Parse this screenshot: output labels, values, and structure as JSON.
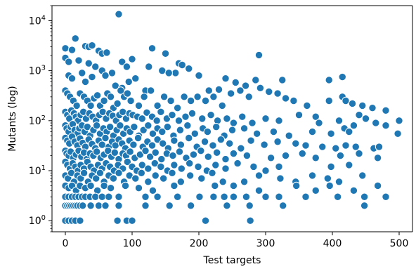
{
  "chart_data": {
    "type": "scatter",
    "title": "",
    "xlabel": "Test targets",
    "ylabel": "Mutants (log)",
    "xlim": [
      -20,
      520
    ],
    "ylim": [
      0.6,
      20000
    ],
    "yscale": "log",
    "grid": false,
    "colors": {
      "point_fill": "#1f77b4",
      "point_edge": "#ffffff",
      "axes": "#000000"
    },
    "x_ticks": [
      {
        "value": 0,
        "label": "0"
      },
      {
        "value": 100,
        "label": "100"
      },
      {
        "value": 200,
        "label": "200"
      },
      {
        "value": 300,
        "label": "300"
      },
      {
        "value": 400,
        "label": "400"
      },
      {
        "value": 500,
        "label": "500"
      }
    ],
    "y_ticks": [
      {
        "value": 1,
        "base": "10",
        "exp": "0"
      },
      {
        "value": 10,
        "base": "10",
        "exp": "1"
      },
      {
        "value": 100,
        "base": "10",
        "exp": "2"
      },
      {
        "value": 1000,
        "base": "10",
        "exp": "3"
      },
      {
        "value": 10000,
        "base": "10",
        "exp": "4"
      }
    ],
    "points": [
      [
        80,
        13500
      ],
      [
        15,
        4400
      ],
      [
        0,
        2800
      ],
      [
        10,
        2600
      ],
      [
        30,
        3100
      ],
      [
        35,
        3000
      ],
      [
        40,
        3200
      ],
      [
        50,
        2500
      ],
      [
        55,
        2200
      ],
      [
        62,
        2300
      ],
      [
        100,
        1700
      ],
      [
        130,
        2800
      ],
      [
        150,
        2200
      ],
      [
        170,
        1400
      ],
      [
        290,
        2050
      ],
      [
        0,
        1800
      ],
      [
        5,
        1500
      ],
      [
        20,
        1600
      ],
      [
        35,
        1400
      ],
      [
        45,
        1200
      ],
      [
        55,
        1000
      ],
      [
        70,
        900
      ],
      [
        85,
        1500
      ],
      [
        92,
        1200
      ],
      [
        145,
        1000
      ],
      [
        165,
        900
      ],
      [
        185,
        1100
      ],
      [
        200,
        800
      ],
      [
        175,
        1300
      ],
      [
        125,
        1200
      ],
      [
        5,
        800
      ],
      [
        10,
        700
      ],
      [
        25,
        900
      ],
      [
        30,
        600
      ],
      [
        40,
        750
      ],
      [
        60,
        800
      ],
      [
        75,
        500
      ],
      [
        85,
        450
      ],
      [
        95,
        600
      ],
      [
        105,
        700
      ],
      [
        120,
        400
      ],
      [
        155,
        900
      ],
      [
        215,
        400
      ],
      [
        230,
        420
      ],
      [
        240,
        700
      ],
      [
        255,
        580
      ],
      [
        270,
        500
      ],
      [
        285,
        650
      ],
      [
        325,
        650
      ],
      [
        415,
        750
      ],
      [
        395,
        650
      ],
      [
        0,
        400
      ],
      [
        3,
        350
      ],
      [
        7,
        300
      ],
      [
        12,
        250
      ],
      [
        17,
        200
      ],
      [
        22,
        350
      ],
      [
        28,
        300
      ],
      [
        33,
        250
      ],
      [
        38,
        200
      ],
      [
        43,
        280
      ],
      [
        48,
        320
      ],
      [
        52,
        200
      ],
      [
        58,
        250
      ],
      [
        63,
        350
      ],
      [
        68,
        300
      ],
      [
        72,
        180
      ],
      [
        78,
        220
      ],
      [
        83,
        400
      ],
      [
        88,
        300
      ],
      [
        93,
        350
      ],
      [
        98,
        250
      ],
      [
        110,
        200
      ],
      [
        118,
        300
      ],
      [
        128,
        400
      ],
      [
        138,
        200
      ],
      [
        148,
        300
      ],
      [
        158,
        250
      ],
      [
        168,
        180
      ],
      [
        178,
        300
      ],
      [
        188,
        250
      ],
      [
        198,
        300
      ],
      [
        210,
        250
      ],
      [
        222,
        300
      ],
      [
        235,
        200
      ],
      [
        248,
        350
      ],
      [
        262,
        400
      ],
      [
        275,
        300
      ],
      [
        292,
        450
      ],
      [
        305,
        380
      ],
      [
        318,
        350
      ],
      [
        330,
        280
      ],
      [
        342,
        250
      ],
      [
        362,
        200
      ],
      [
        395,
        250
      ],
      [
        415,
        300
      ],
      [
        420,
        250
      ],
      [
        430,
        220
      ],
      [
        445,
        200
      ],
      [
        460,
        180
      ],
      [
        480,
        160
      ],
      [
        0,
        150
      ],
      [
        3,
        130
      ],
      [
        6,
        110
      ],
      [
        9,
        160
      ],
      [
        13,
        140
      ],
      [
        16,
        120
      ],
      [
        19,
        100
      ],
      [
        23,
        130
      ],
      [
        27,
        150
      ],
      [
        31,
        110
      ],
      [
        36,
        140
      ],
      [
        41,
        120
      ],
      [
        46,
        100
      ],
      [
        51,
        130
      ],
      [
        56,
        150
      ],
      [
        61,
        110
      ],
      [
        66,
        140
      ],
      [
        71,
        125
      ],
      [
        76,
        100
      ],
      [
        81,
        130
      ],
      [
        86,
        150
      ],
      [
        91,
        110
      ],
      [
        96,
        140
      ],
      [
        101,
        130
      ],
      [
        108,
        120
      ],
      [
        115,
        110
      ],
      [
        122,
        145
      ],
      [
        130,
        120
      ],
      [
        137,
        100
      ],
      [
        143,
        150
      ],
      [
        152,
        110
      ],
      [
        160,
        130
      ],
      [
        170,
        100
      ],
      [
        180,
        120
      ],
      [
        190,
        140
      ],
      [
        205,
        110
      ],
      [
        218,
        130
      ],
      [
        228,
        100
      ],
      [
        242,
        110
      ],
      [
        252,
        90
      ],
      [
        265,
        120
      ],
      [
        280,
        90
      ],
      [
        300,
        110
      ],
      [
        320,
        100
      ],
      [
        350,
        130
      ],
      [
        375,
        120
      ],
      [
        380,
        90
      ],
      [
        410,
        100
      ],
      [
        440,
        130
      ],
      [
        450,
        110
      ],
      [
        465,
        90
      ],
      [
        480,
        80
      ],
      [
        500,
        100
      ],
      [
        0,
        80
      ],
      [
        2,
        70
      ],
      [
        5,
        60
      ],
      [
        8,
        75
      ],
      [
        11,
        85
      ],
      [
        14,
        65
      ],
      [
        18,
        55
      ],
      [
        21,
        70
      ],
      [
        25,
        80
      ],
      [
        29,
        60
      ],
      [
        33,
        75
      ],
      [
        37,
        50
      ],
      [
        42,
        65
      ],
      [
        47,
        80
      ],
      [
        52,
        55
      ],
      [
        57,
        70
      ],
      [
        62,
        60
      ],
      [
        67,
        75
      ],
      [
        72,
        50
      ],
      [
        77,
        65
      ],
      [
        82,
        80
      ],
      [
        87,
        55
      ],
      [
        92,
        70
      ],
      [
        97,
        60
      ],
      [
        103,
        75
      ],
      [
        110,
        50
      ],
      [
        117,
        65
      ],
      [
        124,
        80
      ],
      [
        131,
        55
      ],
      [
        138,
        70
      ],
      [
        145,
        60
      ],
      [
        153,
        75
      ],
      [
        162,
        50
      ],
      [
        172,
        65
      ],
      [
        183,
        80
      ],
      [
        194,
        55
      ],
      [
        206,
        70
      ],
      [
        213,
        60
      ],
      [
        226,
        75
      ],
      [
        238,
        50
      ],
      [
        250,
        65
      ],
      [
        268,
        70
      ],
      [
        287,
        55
      ],
      [
        312,
        60
      ],
      [
        335,
        50
      ],
      [
        370,
        60
      ],
      [
        398,
        55
      ],
      [
        418,
        70
      ],
      [
        425,
        60
      ],
      [
        432,
        80
      ],
      [
        498,
        55
      ],
      [
        0,
        45
      ],
      [
        3,
        40
      ],
      [
        6,
        35
      ],
      [
        10,
        48
      ],
      [
        14,
        38
      ],
      [
        18,
        32
      ],
      [
        22,
        44
      ],
      [
        26,
        36
      ],
      [
        30,
        30
      ],
      [
        35,
        42
      ],
      [
        40,
        34
      ],
      [
        45,
        28
      ],
      [
        50,
        40
      ],
      [
        55,
        33
      ],
      [
        60,
        45
      ],
      [
        65,
        30
      ],
      [
        70,
        38
      ],
      [
        75,
        32
      ],
      [
        80,
        42
      ],
      [
        85,
        35
      ],
      [
        90,
        28
      ],
      [
        96,
        40
      ],
      [
        102,
        33
      ],
      [
        109,
        45
      ],
      [
        116,
        30
      ],
      [
        123,
        38
      ],
      [
        130,
        32
      ],
      [
        138,
        42
      ],
      [
        146,
        35
      ],
      [
        154,
        28
      ],
      [
        163,
        40
      ],
      [
        173,
        33
      ],
      [
        185,
        45
      ],
      [
        197,
        30
      ],
      [
        209,
        38
      ],
      [
        221,
        32
      ],
      [
        233,
        42
      ],
      [
        246,
        35
      ],
      [
        263,
        28
      ],
      [
        278,
        40
      ],
      [
        298,
        33
      ],
      [
        318,
        38
      ],
      [
        345,
        35
      ],
      [
        360,
        32
      ],
      [
        385,
        30
      ],
      [
        405,
        28
      ],
      [
        420,
        32
      ],
      [
        435,
        30
      ],
      [
        462,
        28
      ],
      [
        470,
        30
      ],
      [
        0,
        25
      ],
      [
        2,
        22
      ],
      [
        5,
        20
      ],
      [
        8,
        24
      ],
      [
        12,
        18
      ],
      [
        16,
        21
      ],
      [
        20,
        25
      ],
      [
        24,
        19
      ],
      [
        28,
        23
      ],
      [
        32,
        17
      ],
      [
        37,
        22
      ],
      [
        42,
        20
      ],
      [
        47,
        24
      ],
      [
        53,
        18
      ],
      [
        58,
        21
      ],
      [
        64,
        25
      ],
      [
        69,
        19
      ],
      [
        74,
        23
      ],
      [
        80,
        17
      ],
      [
        86,
        22
      ],
      [
        91,
        20
      ],
      [
        97,
        24
      ],
      [
        104,
        18
      ],
      [
        112,
        21
      ],
      [
        120,
        25
      ],
      [
        127,
        19
      ],
      [
        135,
        23
      ],
      [
        144,
        17
      ],
      [
        152,
        22
      ],
      [
        161,
        20
      ],
      [
        171,
        24
      ],
      [
        181,
        18
      ],
      [
        192,
        21
      ],
      [
        203,
        25
      ],
      [
        214,
        19
      ],
      [
        227,
        23
      ],
      [
        240,
        17
      ],
      [
        252,
        22
      ],
      [
        272,
        20
      ],
      [
        308,
        18
      ],
      [
        330,
        20
      ],
      [
        355,
        22
      ],
      [
        375,
        18
      ],
      [
        412,
        20
      ],
      [
        440,
        22
      ],
      [
        468,
        18
      ],
      [
        0,
        15
      ],
      [
        3,
        13
      ],
      [
        7,
        11
      ],
      [
        11,
        14
      ],
      [
        15,
        12
      ],
      [
        19,
        10
      ],
      [
        23,
        13
      ],
      [
        28,
        11
      ],
      [
        33,
        15
      ],
      [
        38,
        12
      ],
      [
        43,
        10
      ],
      [
        49,
        13
      ],
      [
        55,
        11
      ],
      [
        61,
        14
      ],
      [
        67,
        12
      ],
      [
        73,
        10
      ],
      [
        79,
        13
      ],
      [
        86,
        11
      ],
      [
        93,
        15
      ],
      [
        100,
        12
      ],
      [
        107,
        10
      ],
      [
        115,
        13
      ],
      [
        124,
        11
      ],
      [
        134,
        14
      ],
      [
        143,
        12
      ],
      [
        153,
        10
      ],
      [
        163,
        13
      ],
      [
        174,
        11
      ],
      [
        186,
        14
      ],
      [
        199,
        12
      ],
      [
        212,
        10
      ],
      [
        225,
        13
      ],
      [
        240,
        11
      ],
      [
        258,
        14
      ],
      [
        282,
        12
      ],
      [
        300,
        10
      ],
      [
        320,
        12
      ],
      [
        398,
        12
      ],
      [
        425,
        13
      ],
      [
        0,
        8
      ],
      [
        4,
        7
      ],
      [
        9,
        9
      ],
      [
        13,
        6
      ],
      [
        18,
        8
      ],
      [
        23,
        7
      ],
      [
        28,
        9
      ],
      [
        34,
        6
      ],
      [
        40,
        8
      ],
      [
        46,
        7
      ],
      [
        52,
        9
      ],
      [
        58,
        6
      ],
      [
        65,
        8
      ],
      [
        72,
        7
      ],
      [
        80,
        9
      ],
      [
        88,
        6
      ],
      [
        96,
        8
      ],
      [
        105,
        7
      ],
      [
        114,
        9
      ],
      [
        124,
        6
      ],
      [
        135,
        8
      ],
      [
        147,
        7
      ],
      [
        160,
        9
      ],
      [
        173,
        6
      ],
      [
        187,
        8
      ],
      [
        204,
        7
      ],
      [
        220,
        9
      ],
      [
        236,
        6
      ],
      [
        268,
        6
      ],
      [
        290,
        8
      ],
      [
        322,
        7
      ],
      [
        345,
        6
      ],
      [
        370,
        8
      ],
      [
        393,
        7
      ],
      [
        410,
        6
      ],
      [
        445,
        8
      ],
      [
        0,
        5
      ],
      [
        5,
        4.5
      ],
      [
        10,
        5
      ],
      [
        16,
        4
      ],
      [
        22,
        5
      ],
      [
        30,
        4.5
      ],
      [
        38,
        5
      ],
      [
        48,
        4
      ],
      [
        58,
        5
      ],
      [
        68,
        4.5
      ],
      [
        90,
        5
      ],
      [
        110,
        4.5
      ],
      [
        131,
        4
      ],
      [
        163,
        5
      ],
      [
        224,
        5
      ],
      [
        252,
        5
      ],
      [
        290,
        4
      ],
      [
        346,
        5
      ],
      [
        375,
        4
      ],
      [
        396,
        5
      ],
      [
        432,
        4
      ],
      [
        468,
        5
      ],
      [
        0,
        3
      ],
      [
        5,
        3
      ],
      [
        10,
        3
      ],
      [
        15,
        3
      ],
      [
        20,
        3
      ],
      [
        25,
        3
      ],
      [
        30,
        3
      ],
      [
        37,
        3
      ],
      [
        45,
        3
      ],
      [
        55,
        3
      ],
      [
        65,
        3
      ],
      [
        80,
        3
      ],
      [
        120,
        3
      ],
      [
        138,
        3
      ],
      [
        168,
        3
      ],
      [
        201,
        3
      ],
      [
        222,
        3
      ],
      [
        238,
        3
      ],
      [
        252,
        3
      ],
      [
        271,
        3
      ],
      [
        300,
        3
      ],
      [
        320,
        3
      ],
      [
        360,
        3
      ],
      [
        408,
        3
      ],
      [
        448,
        3
      ],
      [
        480,
        3
      ],
      [
        0,
        2
      ],
      [
        3,
        2
      ],
      [
        6,
        2
      ],
      [
        9,
        2
      ],
      [
        12,
        2
      ],
      [
        15,
        2
      ],
      [
        18,
        2
      ],
      [
        22,
        2
      ],
      [
        26,
        2
      ],
      [
        38,
        2
      ],
      [
        50,
        2
      ],
      [
        60,
        2
      ],
      [
        80,
        2
      ],
      [
        120,
        2
      ],
      [
        156,
        2
      ],
      [
        188,
        2
      ],
      [
        242,
        2
      ],
      [
        276,
        2
      ],
      [
        326,
        2
      ],
      [
        448,
        2
      ],
      [
        0,
        1
      ],
      [
        5,
        1
      ],
      [
        10,
        1
      ],
      [
        15,
        1
      ],
      [
        22,
        1
      ],
      [
        78,
        1
      ],
      [
        92,
        1
      ],
      [
        100,
        1
      ],
      [
        210,
        1
      ],
      [
        277,
        1
      ]
    ]
  }
}
